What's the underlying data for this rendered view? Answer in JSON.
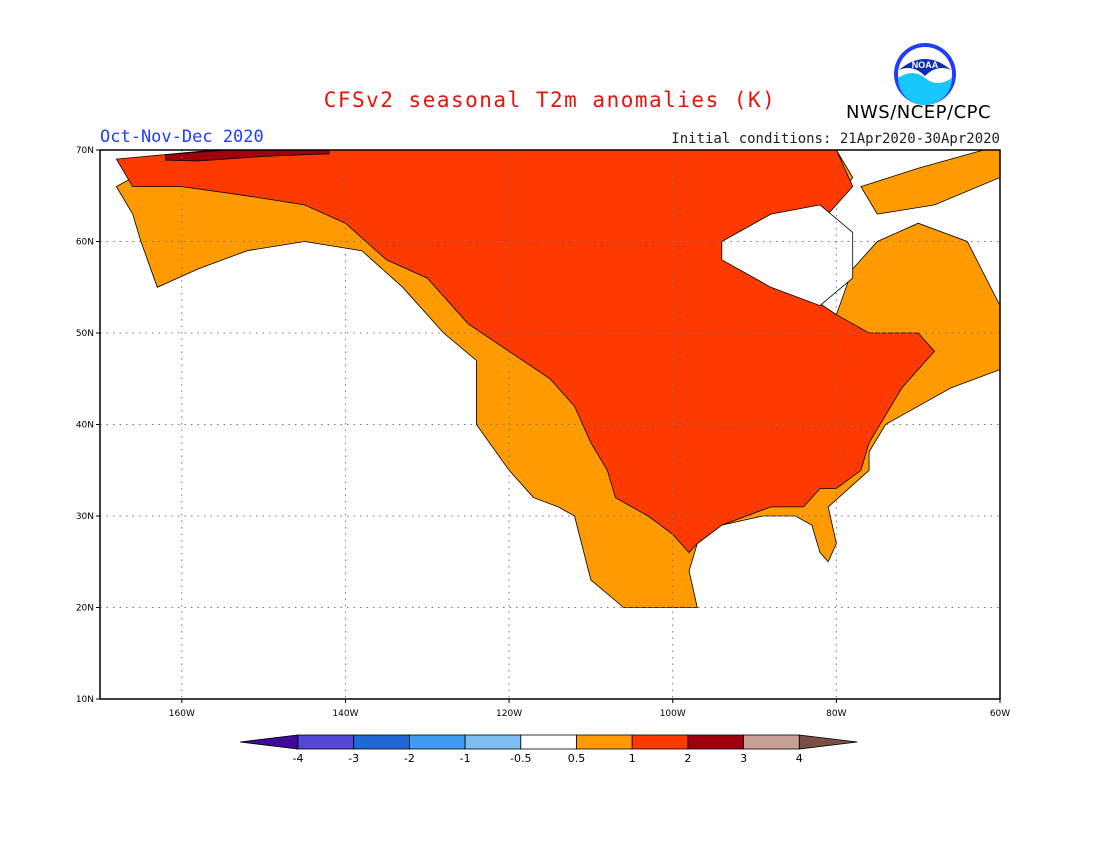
{
  "header": {
    "title": "CFSv2 seasonal T2m anomalies (K)",
    "period": "Oct-Nov-Dec 2020",
    "initial_conditions": "Initial conditions: 21Apr2020-30Apr2020",
    "agency": "NWS/NCEP/CPC",
    "logo_text": "NOAA"
  },
  "map": {
    "lon_range": [
      -170,
      -60
    ],
    "lat_range": [
      10,
      70
    ],
    "lon_ticks": [
      {
        "lon": -160,
        "label": "160W"
      },
      {
        "lon": -140,
        "label": "140W"
      },
      {
        "lon": -120,
        "label": "120W"
      },
      {
        "lon": -100,
        "label": "100W"
      },
      {
        "lon": -80,
        "label": "80W"
      },
      {
        "lon": -60,
        "label": "60W"
      }
    ],
    "lat_ticks": [
      {
        "lat": 70,
        "label": "70N"
      },
      {
        "lat": 60,
        "label": "60N"
      },
      {
        "lat": 50,
        "label": "50N"
      },
      {
        "lat": 40,
        "label": "40N"
      },
      {
        "lat": 30,
        "label": "30N"
      },
      {
        "lat": 20,
        "label": "20N"
      },
      {
        "lat": 10,
        "label": "10N"
      }
    ],
    "grid": "dotted",
    "regions": [
      {
        "name": "North America land (0.5 to 1)",
        "category": "0.5 to 1",
        "points": [
          [
            -168,
            66
          ],
          [
            -162,
            69
          ],
          [
            -150,
            70.5
          ],
          [
            -140,
            70
          ],
          [
            -128,
            70
          ],
          [
            -115,
            70
          ],
          [
            -100,
            70
          ],
          [
            -90,
            70
          ],
          [
            -80,
            70
          ],
          [
            -78,
            67
          ],
          [
            -82,
            62
          ],
          [
            -92,
            58
          ],
          [
            -85,
            55
          ],
          [
            -80,
            52
          ],
          [
            -78,
            57
          ],
          [
            -75,
            60
          ],
          [
            -70,
            62
          ],
          [
            -64,
            60
          ],
          [
            -60,
            53
          ],
          [
            -60,
            46
          ],
          [
            -66,
            44
          ],
          [
            -70,
            42
          ],
          [
            -74,
            40
          ],
          [
            -76,
            37
          ],
          [
            -76,
            35
          ],
          [
            -81,
            31
          ],
          [
            -80,
            27
          ],
          [
            -81,
            25
          ],
          [
            -82,
            26
          ],
          [
            -83,
            29
          ],
          [
            -85,
            30
          ],
          [
            -89,
            30
          ],
          [
            -94,
            29
          ],
          [
            -97,
            27
          ],
          [
            -98,
            24
          ],
          [
            -97,
            20
          ],
          [
            -106,
            20
          ],
          [
            -110,
            23
          ],
          [
            -112,
            30
          ],
          [
            -114,
            31
          ],
          [
            -117,
            32
          ],
          [
            -120,
            35
          ],
          [
            -124,
            40
          ],
          [
            -124,
            47
          ],
          [
            -128,
            50
          ],
          [
            -133,
            55
          ],
          [
            -138,
            59
          ],
          [
            -145,
            60
          ],
          [
            -152,
            59
          ],
          [
            -158,
            57
          ],
          [
            -163,
            55
          ],
          [
            -165,
            60
          ],
          [
            -166,
            63
          ]
        ]
      },
      {
        "name": "North/interior (1 to 2)",
        "category": "1 to 2",
        "points": [
          [
            -168,
            69
          ],
          [
            -150,
            70.5
          ],
          [
            -128,
            70
          ],
          [
            -100,
            70
          ],
          [
            -80,
            70
          ],
          [
            -78,
            66
          ],
          [
            -82,
            62
          ],
          [
            -92,
            58
          ],
          [
            -85,
            55
          ],
          [
            -80,
            52
          ],
          [
            -76,
            50
          ],
          [
            -70,
            50
          ],
          [
            -68,
            48
          ],
          [
            -72,
            44
          ],
          [
            -74,
            41
          ],
          [
            -76,
            38
          ],
          [
            -77,
            35
          ],
          [
            -80,
            33
          ],
          [
            -82,
            33
          ],
          [
            -84,
            31
          ],
          [
            -88,
            31
          ],
          [
            -94,
            29
          ],
          [
            -97,
            27
          ],
          [
            -98,
            26
          ],
          [
            -100,
            28
          ],
          [
            -103,
            30
          ],
          [
            -105,
            31
          ],
          [
            -107,
            32
          ],
          [
            -108,
            35
          ],
          [
            -110,
            38
          ],
          [
            -112,
            42
          ],
          [
            -115,
            45
          ],
          [
            -120,
            48
          ],
          [
            -125,
            51
          ],
          [
            -130,
            56
          ],
          [
            -135,
            58
          ],
          [
            -140,
            62
          ],
          [
            -145,
            64
          ],
          [
            -152,
            65
          ],
          [
            -160,
            66
          ],
          [
            -166,
            66
          ]
        ]
      },
      {
        "name": "Arctic coast (2 to 3)",
        "category": "2 to 3",
        "points": [
          [
            -162,
            69.5
          ],
          [
            -150,
            70.3
          ],
          [
            -142,
            70.3
          ],
          [
            -142,
            69.6
          ],
          [
            -150,
            69.3
          ],
          [
            -158,
            68.8
          ],
          [
            -162,
            68.9
          ]
        ]
      },
      {
        "name": "Greenland rim (0.5 to 1)",
        "category": "0.5 to 1",
        "points": [
          [
            -77,
            66
          ],
          [
            -70,
            68
          ],
          [
            -62,
            70
          ],
          [
            -60,
            70
          ],
          [
            -60,
            67
          ],
          [
            -68,
            64
          ],
          [
            -75,
            63
          ]
        ]
      }
    ],
    "holes": [
      {
        "name": "Hudson Bay",
        "points": [
          [
            -94,
            60
          ],
          [
            -88,
            63
          ],
          [
            -82,
            64
          ],
          [
            -78,
            61
          ],
          [
            -78,
            56
          ],
          [
            -82,
            53
          ],
          [
            -88,
            55
          ],
          [
            -94,
            58
          ]
        ]
      }
    ]
  },
  "colorbar": {
    "labels": [
      "-4",
      "-3",
      "-2",
      "-1",
      "-0.5",
      "0.5",
      "1",
      "2",
      "3",
      "4"
    ],
    "colors": [
      "#3d0a9c",
      "#5447d6",
      "#1e69d6",
      "#3f9cf0",
      "#7ebdf2",
      "#ffffff",
      "#ff9a00",
      "#ff3a00",
      "#a0000e",
      "#c8a094",
      "#7b4e45"
    ]
  }
}
